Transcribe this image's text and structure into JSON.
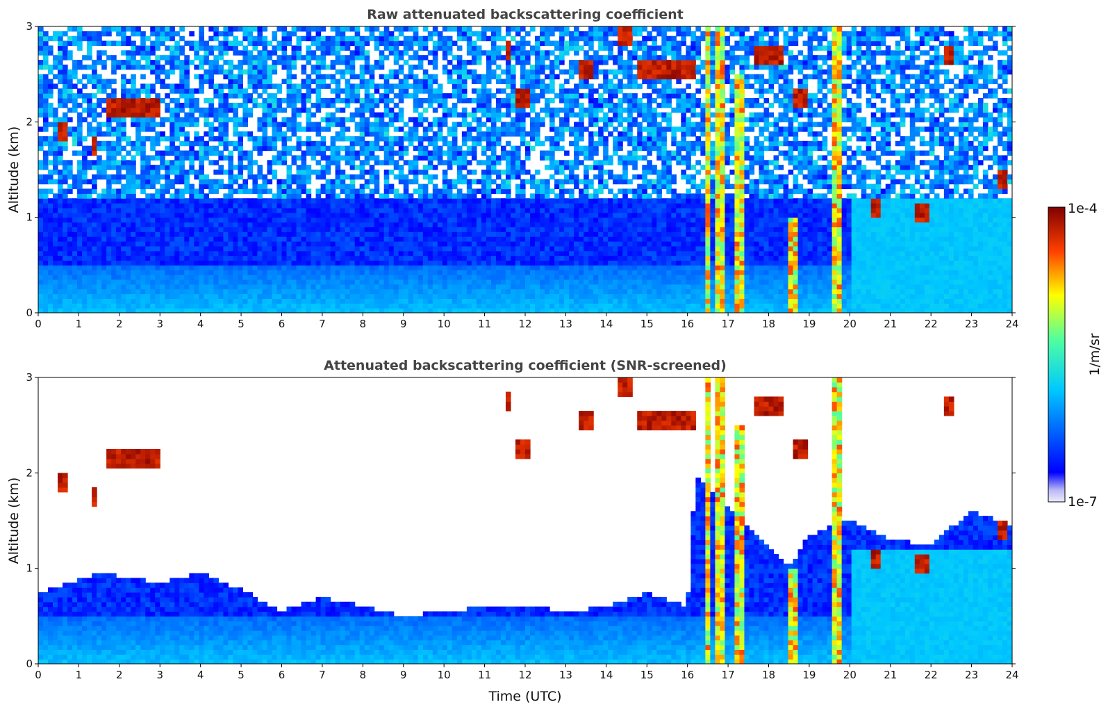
{
  "chart_data": [
    {
      "type": "heatmap",
      "title": "Raw attenuated backscattering coefficient",
      "xlabel": "",
      "ylabel": "Altitude (km)",
      "xlim": [
        0,
        24
      ],
      "ylim": [
        0,
        3
      ],
      "xticks": [
        0,
        1,
        2,
        3,
        4,
        5,
        6,
        7,
        8,
        9,
        10,
        11,
        12,
        13,
        14,
        15,
        16,
        17,
        18,
        19,
        20,
        21,
        22,
        23,
        24
      ],
      "yticks": [
        0,
        1,
        2,
        3
      ],
      "screened": false,
      "features": {
        "boundary_layer_top_km": 0.5,
        "cloud_columns": [
          {
            "t": 16.5,
            "top": 3.0
          },
          {
            "t": 16.8,
            "top": 3.0
          },
          {
            "t": 17.25,
            "top": 2.5
          },
          {
            "t": 18.65,
            "top": 1.0
          },
          {
            "t": 19.7,
            "top": 3.0
          }
        ],
        "cloud_patches": [
          {
            "t0": 1.65,
            "t1": 3.0,
            "alt": 2.15
          },
          {
            "t0": 0.5,
            "t1": 0.7,
            "alt": 1.9
          },
          {
            "t0": 1.3,
            "t1": 1.45,
            "alt": 1.75
          },
          {
            "t0": 11.5,
            "t1": 11.65,
            "alt": 2.75
          },
          {
            "t0": 11.8,
            "t1": 12.15,
            "alt": 2.25
          },
          {
            "t0": 13.3,
            "t1": 13.7,
            "alt": 2.55
          },
          {
            "t0": 14.3,
            "t1": 14.6,
            "alt": 2.9
          },
          {
            "t0": 14.8,
            "t1": 16.2,
            "alt": 2.55
          },
          {
            "t0": 17.7,
            "t1": 18.4,
            "alt": 2.7
          },
          {
            "t0": 18.6,
            "t1": 19.0,
            "alt": 2.25
          },
          {
            "t0": 20.5,
            "t1": 20.8,
            "alt": 1.1
          },
          {
            "t0": 21.6,
            "t1": 21.9,
            "alt": 1.05
          },
          {
            "t0": 22.3,
            "t1": 22.5,
            "alt": 2.7
          },
          {
            "t0": 23.7,
            "t1": 23.85,
            "alt": 1.4
          }
        ]
      }
    },
    {
      "type": "heatmap",
      "title": "Attenuated backscattering coefficient (SNR-screened)",
      "xlabel": "Time (UTC)",
      "ylabel": "Altitude (km)",
      "xlim": [
        0,
        24
      ],
      "ylim": [
        0,
        3
      ],
      "xticks": [
        0,
        1,
        2,
        3,
        4,
        5,
        6,
        7,
        8,
        9,
        10,
        11,
        12,
        13,
        14,
        15,
        16,
        17,
        18,
        19,
        20,
        21,
        22,
        23,
        24
      ],
      "yticks": [
        0,
        1,
        2,
        3
      ],
      "screened": true,
      "features": {
        "screen_boundary_km": [
          [
            0,
            0.75
          ],
          [
            1.5,
            0.95
          ],
          [
            3,
            0.85
          ],
          [
            4,
            0.95
          ],
          [
            5,
            0.78
          ],
          [
            6,
            0.55
          ],
          [
            7,
            0.7
          ],
          [
            8,
            0.6
          ],
          [
            9,
            0.5
          ],
          [
            10,
            0.55
          ],
          [
            11,
            0.6
          ],
          [
            12,
            0.62
          ],
          [
            13,
            0.55
          ],
          [
            14,
            0.6
          ],
          [
            15,
            0.75
          ],
          [
            16,
            0.6
          ],
          [
            16.2,
            2.0
          ],
          [
            18.5,
            1.0
          ],
          [
            19,
            1.35
          ],
          [
            20,
            1.5
          ],
          [
            21,
            1.3
          ],
          [
            22,
            1.25
          ],
          [
            23,
            1.6
          ],
          [
            24,
            1.45
          ]
        ]
      }
    }
  ],
  "colorbar": {
    "label": "1/m/sr",
    "max_label": "1e-4",
    "min_label": "1e-7",
    "scale": "log",
    "colormap": "jet",
    "colors": [
      "#ececfa",
      "#0000ff",
      "#00c8ff",
      "#4fffa0",
      "#ffff00",
      "#ff4000",
      "#800000"
    ]
  }
}
